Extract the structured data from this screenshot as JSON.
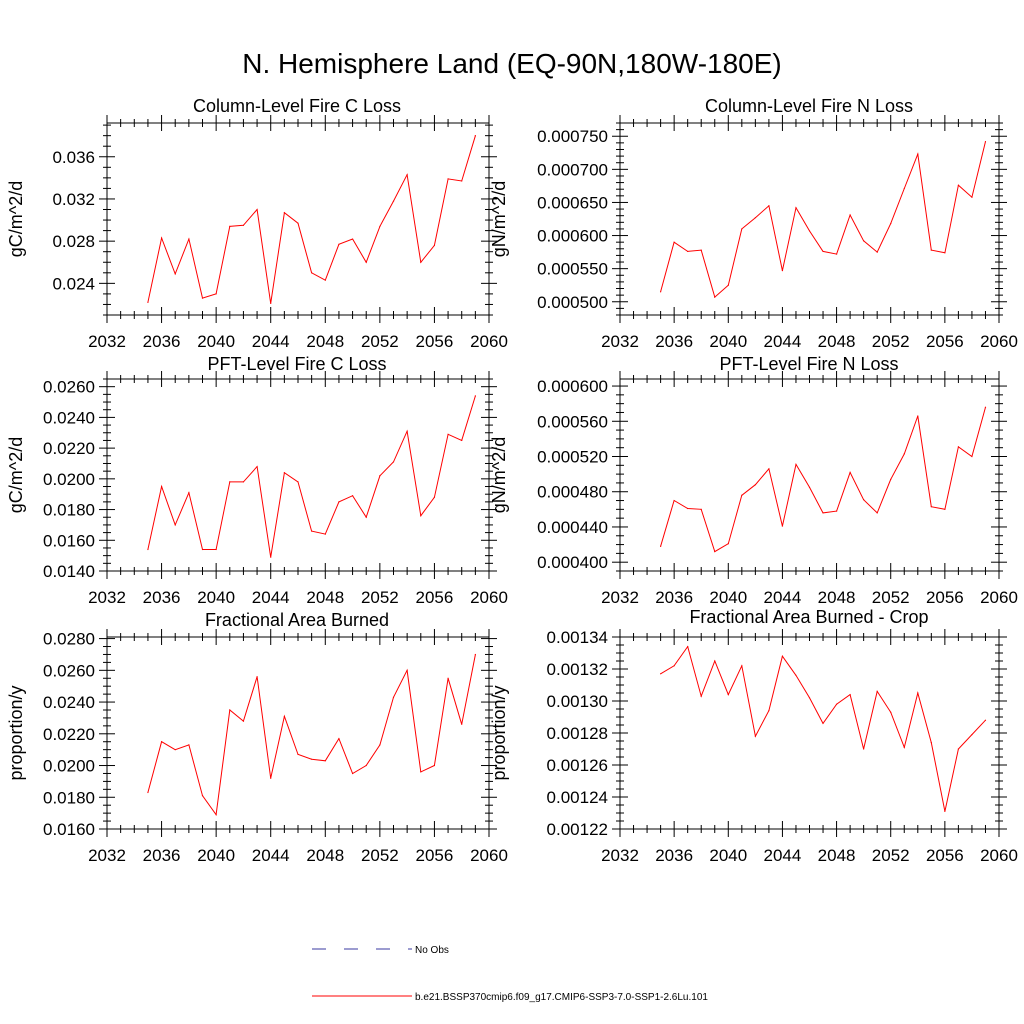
{
  "page_title": "N. Hemisphere Land (EQ-90N,180W-180E)",
  "legend": {
    "obs_label": "No Obs",
    "model_label": "b.e21.BSSP370cmip6.f09_g17.CMIP6-SSP3-7.0-SSP1-2.6Lu.101",
    "model_color": "#ff0000",
    "obs_color": "#3a3aa0"
  },
  "chart_data": [
    {
      "type": "line",
      "title": "Column-Level Fire C Loss",
      "ylabel": "gC/m^2/d",
      "xlim": [
        2032,
        2060
      ],
      "ylim": [
        0.021,
        0.0392
      ],
      "xticks": [
        2032,
        2036,
        2040,
        2044,
        2048,
        2052,
        2056,
        2060
      ],
      "xtick_labels": [
        "2032",
        "2036",
        "2040",
        "2044",
        "2048",
        "2052",
        "2056",
        "2060"
      ],
      "yticks": [
        0.024,
        0.028,
        0.032,
        0.036
      ],
      "ytick_labels": [
        "0.024",
        "0.028",
        "0.032",
        "0.036"
      ],
      "yminor": 0.001,
      "series": [
        {
          "x": [
            2035,
            2036,
            2037,
            2038,
            2039,
            2040,
            2041,
            2042,
            2043,
            2044,
            2045,
            2046,
            2047,
            2048,
            2049,
            2050,
            2051,
            2052,
            2053,
            2054,
            2055,
            2056,
            2057,
            2058,
            2059
          ],
          "values": [
            0.0222,
            0.0283,
            0.0249,
            0.0282,
            0.0226,
            0.023,
            0.0294,
            0.0295,
            0.031,
            0.0221,
            0.0307,
            0.0297,
            0.025,
            0.0243,
            0.0277,
            0.0282,
            0.026,
            0.0294,
            0.0318,
            0.0343,
            0.026,
            0.0276,
            0.0339,
            0.0337,
            0.038
          ]
        }
      ]
    },
    {
      "type": "line",
      "title": "Column-Level Fire N Loss",
      "ylabel": "gN/m^2/d",
      "xlim": [
        2032,
        2060
      ],
      "ylim": [
        0.00048,
        0.00077
      ],
      "xticks": [
        2032,
        2036,
        2040,
        2044,
        2048,
        2052,
        2056,
        2060
      ],
      "xtick_labels": [
        "2032",
        "2036",
        "2040",
        "2044",
        "2048",
        "2052",
        "2056",
        "2060"
      ],
      "yticks": [
        0.0005,
        0.00055,
        0.0006,
        0.00065,
        0.0007,
        0.00075
      ],
      "ytick_labels": [
        "0.000500",
        "0.000550",
        "0.000600",
        "0.000650",
        "0.000700",
        "0.000750"
      ],
      "yminor": 1e-05,
      "series": [
        {
          "x": [
            2035,
            2036,
            2037,
            2038,
            2039,
            2040,
            2041,
            2042,
            2043,
            2044,
            2045,
            2046,
            2047,
            2048,
            2049,
            2050,
            2051,
            2052,
            2053,
            2054,
            2055,
            2056,
            2057,
            2058,
            2059
          ],
          "values": [
            0.000515,
            0.00059,
            0.000576,
            0.000578,
            0.000507,
            0.000525,
            0.00061,
            0.000627,
            0.000645,
            0.000547,
            0.000642,
            0.000607,
            0.000576,
            0.000572,
            0.000631,
            0.000592,
            0.000575,
            0.000618,
            0.000671,
            0.000723,
            0.000578,
            0.000574,
            0.000676,
            0.000658,
            0.000742
          ]
        }
      ]
    },
    {
      "type": "line",
      "title": "PFT-Level Fire C Loss",
      "ylabel": "gC/m^2/d",
      "xlim": [
        2032,
        2060
      ],
      "ylim": [
        0.014,
        0.0265
      ],
      "xticks": [
        2032,
        2036,
        2040,
        2044,
        2048,
        2052,
        2056,
        2060
      ],
      "xtick_labels": [
        "2032",
        "2036",
        "2040",
        "2044",
        "2048",
        "2052",
        "2056",
        "2060"
      ],
      "yticks": [
        0.014,
        0.016,
        0.018,
        0.02,
        0.022,
        0.024,
        0.026
      ],
      "ytick_labels": [
        "0.0140",
        "0.0160",
        "0.0180",
        "0.0200",
        "0.0220",
        "0.0240",
        "0.0260"
      ],
      "yminor": 0.0005,
      "series": [
        {
          "x": [
            2035,
            2036,
            2037,
            2038,
            2039,
            2040,
            2041,
            2042,
            2043,
            2044,
            2045,
            2046,
            2047,
            2048,
            2049,
            2050,
            2051,
            2052,
            2053,
            2054,
            2055,
            2056,
            2057,
            2058,
            2059
          ],
          "values": [
            0.0154,
            0.0195,
            0.017,
            0.0191,
            0.0154,
            0.0154,
            0.0198,
            0.0198,
            0.0208,
            0.0149,
            0.0204,
            0.0198,
            0.0166,
            0.0164,
            0.0185,
            0.0189,
            0.0175,
            0.0202,
            0.0211,
            0.0231,
            0.0176,
            0.0188,
            0.0229,
            0.0225,
            0.0254
          ]
        }
      ]
    },
    {
      "type": "line",
      "title": "PFT-Level Fire N Loss",
      "ylabel": "gN/m^2/d",
      "xlim": [
        2032,
        2060
      ],
      "ylim": [
        0.00039,
        0.000608
      ],
      "xticks": [
        2032,
        2036,
        2040,
        2044,
        2048,
        2052,
        2056,
        2060
      ],
      "xtick_labels": [
        "2032",
        "2036",
        "2040",
        "2044",
        "2048",
        "2052",
        "2056",
        "2060"
      ],
      "yticks": [
        0.0004,
        0.00044,
        0.00048,
        0.00052,
        0.00056,
        0.0006
      ],
      "ytick_labels": [
        "0.000400",
        "0.000440",
        "0.000480",
        "0.000520",
        "0.000560",
        "0.000600"
      ],
      "yminor": 1e-05,
      "series": [
        {
          "x": [
            2035,
            2036,
            2037,
            2038,
            2039,
            2040,
            2041,
            2042,
            2043,
            2044,
            2045,
            2046,
            2047,
            2048,
            2049,
            2050,
            2051,
            2052,
            2053,
            2054,
            2055,
            2056,
            2057,
            2058,
            2059
          ],
          "values": [
            0.000418,
            0.00047,
            0.000461,
            0.00046,
            0.000412,
            0.000421,
            0.000476,
            0.000488,
            0.000506,
            0.000441,
            0.000511,
            0.000485,
            0.000456,
            0.000458,
            0.000502,
            0.000471,
            0.000456,
            0.000494,
            0.000523,
            0.000566,
            0.000463,
            0.00046,
            0.000531,
            0.00052,
            0.000576
          ]
        }
      ]
    },
    {
      "type": "line",
      "title": "Fractional Area Burned",
      "ylabel": "proportion/y",
      "xlim": [
        2032,
        2060
      ],
      "ylim": [
        0.016,
        0.0281
      ],
      "xticks": [
        2032,
        2036,
        2040,
        2044,
        2048,
        2052,
        2056,
        2060
      ],
      "xtick_labels": [
        "2032",
        "2036",
        "2040",
        "2044",
        "2048",
        "2052",
        "2056",
        "2060"
      ],
      "yticks": [
        0.016,
        0.018,
        0.02,
        0.022,
        0.024,
        0.026,
        0.028
      ],
      "ytick_labels": [
        "0.0160",
        "0.0180",
        "0.0200",
        "0.0220",
        "0.0240",
        "0.0260",
        "0.0280"
      ],
      "yminor": 0.0005,
      "series": [
        {
          "x": [
            2035,
            2036,
            2037,
            2038,
            2039,
            2040,
            2041,
            2042,
            2043,
            2044,
            2045,
            2046,
            2047,
            2048,
            2049,
            2050,
            2051,
            2052,
            2053,
            2054,
            2055,
            2056,
            2057,
            2058,
            2059
          ],
          "values": [
            0.0183,
            0.0215,
            0.021,
            0.0213,
            0.0181,
            0.0169,
            0.0235,
            0.0228,
            0.0256,
            0.0192,
            0.0231,
            0.0207,
            0.0204,
            0.0203,
            0.0217,
            0.0195,
            0.02,
            0.0213,
            0.0243,
            0.026,
            0.0196,
            0.02,
            0.0255,
            0.0226,
            0.027
          ]
        }
      ]
    },
    {
      "type": "line",
      "title": "Fractional Area Burned - Crop",
      "ylabel": "proportion/y",
      "xlim": [
        2032,
        2060
      ],
      "ylim": [
        0.00122,
        0.00134
      ],
      "xticks": [
        2032,
        2036,
        2040,
        2044,
        2048,
        2052,
        2056,
        2060
      ],
      "xtick_labels": [
        "2032",
        "2036",
        "2040",
        "2044",
        "2048",
        "2052",
        "2056",
        "2060"
      ],
      "yticks": [
        0.00122,
        0.00124,
        0.00126,
        0.00128,
        0.0013,
        0.00132,
        0.00134
      ],
      "ytick_labels": [
        "0.00122",
        "0.00124",
        "0.00126",
        "0.00128",
        "0.00130",
        "0.00132",
        "0.00134"
      ],
      "yminor": 5e-06,
      "series": [
        {
          "x": [
            2035,
            2036,
            2037,
            2038,
            2039,
            2040,
            2041,
            2042,
            2043,
            2044,
            2045,
            2046,
            2047,
            2048,
            2049,
            2050,
            2051,
            2052,
            2053,
            2054,
            2055,
            2056,
            2057,
            2058,
            2059
          ],
          "values": [
            0.001317,
            0.001322,
            0.001334,
            0.001303,
            0.001325,
            0.001304,
            0.001322,
            0.001278,
            0.001294,
            0.001328,
            0.001316,
            0.001302,
            0.001286,
            0.001298,
            0.001304,
            0.00127,
            0.001306,
            0.001293,
            0.001271,
            0.001305,
            0.001274,
            0.001231,
            0.00127,
            0.001279,
            0.001288
          ]
        }
      ]
    }
  ]
}
